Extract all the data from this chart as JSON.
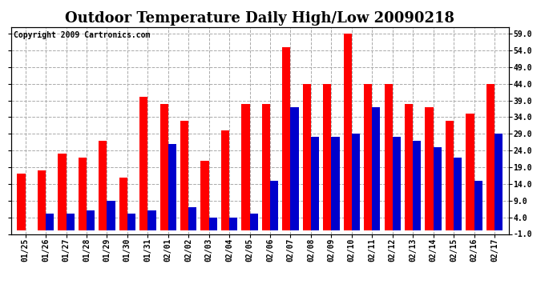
{
  "title": "Outdoor Temperature Daily High/Low 20090218",
  "copyright_text": "Copyright 2009 Cartronics.com",
  "dates": [
    "01/25",
    "01/26",
    "01/27",
    "01/28",
    "01/29",
    "01/30",
    "01/31",
    "02/01",
    "02/02",
    "02/03",
    "02/04",
    "02/05",
    "02/06",
    "02/07",
    "02/08",
    "02/09",
    "02/10",
    "02/11",
    "02/12",
    "02/13",
    "02/14",
    "02/15",
    "02/16",
    "02/17"
  ],
  "highs": [
    17,
    18,
    23,
    22,
    27,
    16,
    40,
    38,
    33,
    21,
    30,
    38,
    38,
    55,
    44,
    44,
    59,
    44,
    44,
    38,
    37,
    33,
    35,
    44
  ],
  "lows": [
    0,
    5,
    5,
    6,
    9,
    5,
    6,
    26,
    7,
    4,
    4,
    5,
    15,
    37,
    28,
    28,
    29,
    37,
    28,
    27,
    25,
    22,
    15,
    29
  ],
  "high_color": "#ff0000",
  "low_color": "#0000cc",
  "bg_color": "#ffffff",
  "plot_bg_color": "#ffffff",
  "grid_color": "#aaaaaa",
  "ylim_min": -1.0,
  "ylim_max": 61.0,
  "yticks": [
    -1.0,
    4.0,
    9.0,
    14.0,
    19.0,
    24.0,
    29.0,
    34.0,
    39.0,
    44.0,
    49.0,
    54.0,
    59.0
  ],
  "bar_width": 0.4,
  "title_fontsize": 13,
  "copyright_fontsize": 7,
  "tick_fontsize": 7,
  "ytick_fontsize": 7
}
